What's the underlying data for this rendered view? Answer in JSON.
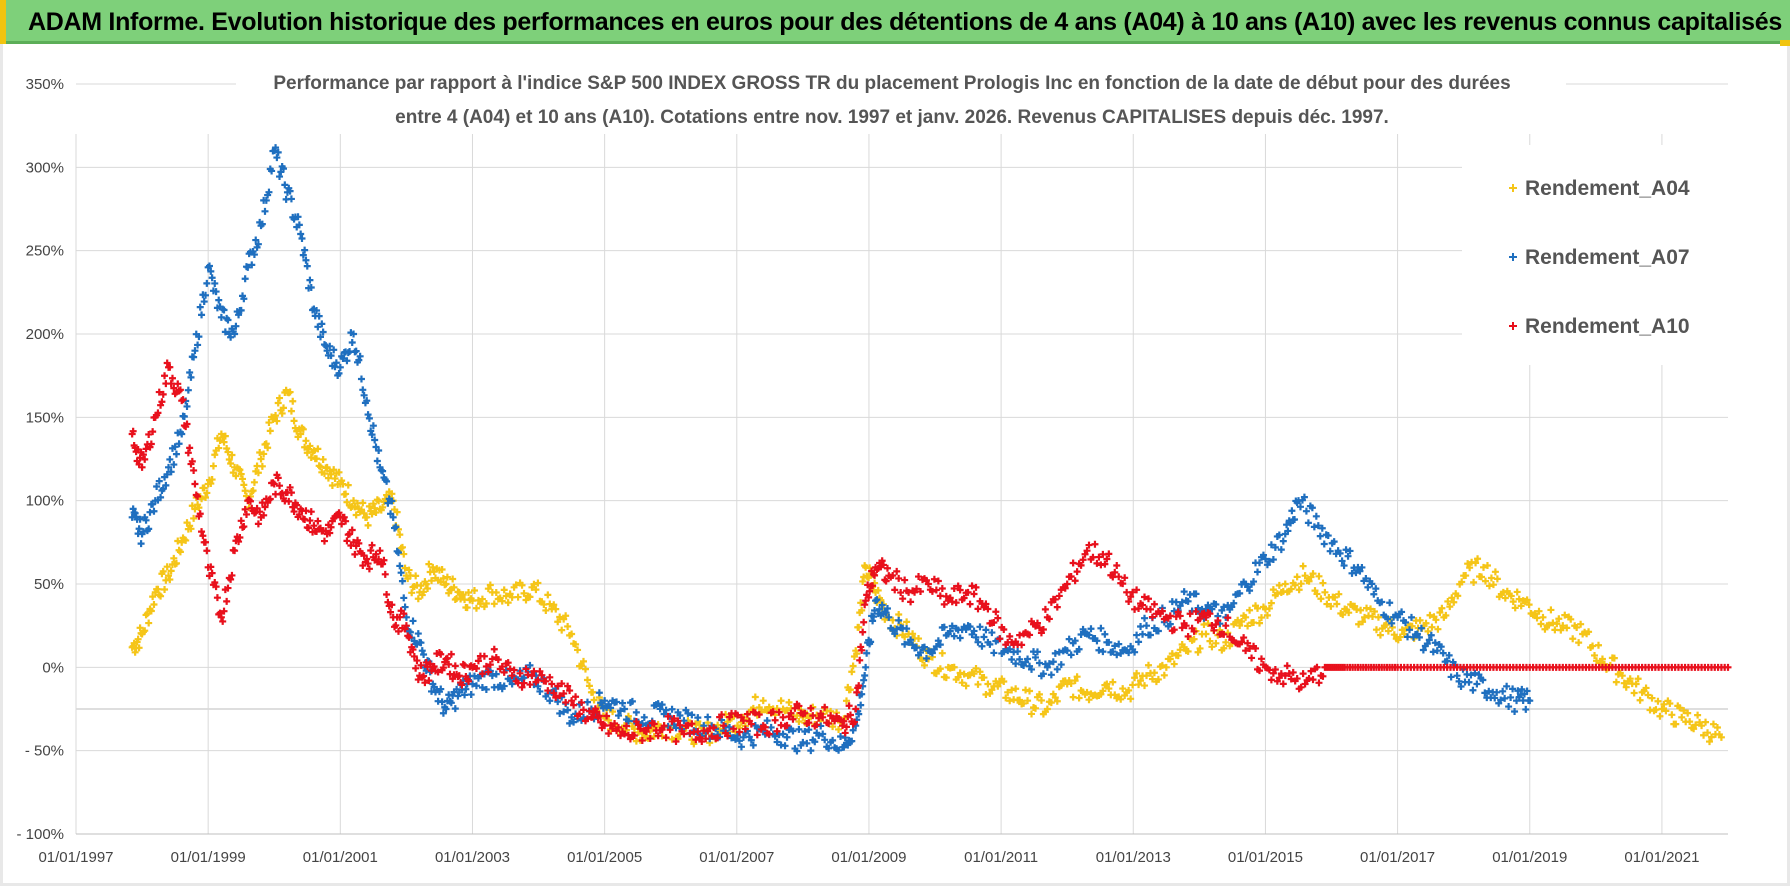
{
  "banner": {
    "title": "ADAM Informe. Evolution historique des performances en euros pour des détentions de 4 ans (A04) à 10 ans (A10) avec les revenus connus capitalisés"
  },
  "colors": {
    "banner_bg": "#7ed07a",
    "A04": "#f5c518",
    "A07": "#1f6fbf",
    "A10": "#e8101c",
    "grid": "#d9d9d9"
  },
  "chart_data": {
    "type": "scatter",
    "title_lines": [
      "Performance par rapport à l'indice S&P 500 INDEX GROSS TR  du placement Prologis Inc en fonction de la date de début pour des durées",
      "entre 4 (A04) et 10 ans (A10). Cotations entre nov. 1997 et janv. 2026. Revenus CAPITALISES depuis déc. 1997."
    ],
    "xlabel": "",
    "ylabel": "",
    "x_range": [
      1997.0,
      2022.0
    ],
    "ylim": [
      -100,
      350
    ],
    "y_ticks": [
      -100,
      -50,
      0,
      50,
      100,
      150,
      200,
      250,
      300,
      350
    ],
    "y_tick_labels": [
      "- 100%",
      "- 50%",
      "0%",
      "50%",
      "100%",
      "150%",
      "200%",
      "250%",
      "300%",
      "350%"
    ],
    "x_ticks": [
      1997,
      1999,
      2001,
      2003,
      2005,
      2007,
      2009,
      2011,
      2013,
      2015,
      2017,
      2019,
      2021
    ],
    "x_tick_labels": [
      "01/01/1997",
      "01/01/1999",
      "01/01/2001",
      "01/01/2003",
      "01/01/2005",
      "01/01/2007",
      "01/01/2009",
      "01/01/2011",
      "01/01/2013",
      "01/01/2015",
      "01/01/2017",
      "01/01/2019",
      "01/01/2021"
    ],
    "legend_position": "top-right",
    "grid": true,
    "series": [
      {
        "name": "Rendement_A04",
        "color": "#f5c518",
        "x": [
          1997.85,
          1998.0,
          1998.2,
          1998.4,
          1998.6,
          1998.8,
          1999.0,
          1999.2,
          1999.4,
          1999.6,
          1999.8,
          2000.0,
          2000.2,
          2000.4,
          2000.6,
          2000.8,
          2001.0,
          2001.2,
          2001.4,
          2001.6,
          2001.8,
          2002.0,
          2002.2,
          2002.4,
          2002.6,
          2002.8,
          2003.0,
          2003.3,
          2003.6,
          2003.9,
          2004.2,
          2004.5,
          2004.8,
          2005.0,
          2005.3,
          2005.6,
          2005.9,
          2006.2,
          2006.5,
          2006.8,
          2007.1,
          2007.4,
          2007.7,
          2008.0,
          2008.3,
          2008.6,
          2008.8,
          2008.95,
          2009.1,
          2009.3,
          2009.6,
          2009.9,
          2010.2,
          2010.5,
          2010.8,
          2011.1,
          2011.4,
          2011.7,
          2012.0,
          2012.3,
          2012.6,
          2012.9,
          2013.2,
          2013.5,
          2013.8,
          2014.1,
          2014.4,
          2014.7,
          2015.0,
          2015.3,
          2015.6,
          2015.9,
          2016.2,
          2016.5,
          2016.8,
          2017.1,
          2017.4,
          2017.7,
          2018.0,
          2018.3,
          2018.6,
          2018.9,
          2019.2,
          2019.5,
          2019.8,
          2020.1,
          2020.4,
          2020.7,
          2021.0,
          2021.3,
          2021.6,
          2021.9
        ],
        "values": [
          12,
          20,
          45,
          55,
          75,
          95,
          110,
          140,
          120,
          100,
          125,
          150,
          165,
          140,
          130,
          120,
          110,
          100,
          90,
          95,
          100,
          55,
          45,
          60,
          50,
          45,
          40,
          45,
          42,
          48,
          35,
          20,
          -15,
          -30,
          -35,
          -40,
          -35,
          -38,
          -40,
          -35,
          -30,
          -20,
          -25,
          -30,
          -28,
          -32,
          10,
          60,
          45,
          30,
          20,
          5,
          0,
          -5,
          -10,
          -15,
          -20,
          -25,
          -10,
          -15,
          -10,
          -15,
          -5,
          0,
          10,
          20,
          15,
          30,
          35,
          50,
          55,
          45,
          35,
          30,
          25,
          20,
          25,
          30,
          55,
          60,
          45,
          40,
          30,
          25,
          20,
          5,
          -5,
          -15,
          -25,
          -30,
          -35,
          -42
        ]
      },
      {
        "name": "Rendement_A07",
        "color": "#1f6fbf",
        "x": [
          1997.85,
          1998.0,
          1998.2,
          1998.4,
          1998.6,
          1998.8,
          1999.0,
          1999.2,
          1999.4,
          1999.6,
          1999.8,
          2000.0,
          2000.2,
          2000.4,
          2000.6,
          2000.8,
          2001.0,
          2001.2,
          2001.4,
          2001.6,
          2001.8,
          2002.0,
          2002.2,
          2002.4,
          2002.6,
          2002.8,
          2003.0,
          2003.3,
          2003.6,
          2003.9,
          2004.2,
          2004.5,
          2004.8,
          2005.0,
          2005.3,
          2005.6,
          2005.9,
          2006.2,
          2006.5,
          2006.8,
          2007.1,
          2007.4,
          2007.7,
          2008.0,
          2008.3,
          2008.6,
          2008.8,
          2008.95,
          2009.1,
          2009.3,
          2009.6,
          2009.9,
          2010.2,
          2010.5,
          2010.8,
          2011.1,
          2011.4,
          2011.7,
          2012.0,
          2012.3,
          2012.6,
          2012.9,
          2013.2,
          2013.5,
          2013.8,
          2014.1,
          2014.4,
          2014.7,
          2015.0,
          2015.3,
          2015.5,
          2015.8,
          2016.1,
          2016.4,
          2016.7,
          2017.0,
          2017.3,
          2017.6,
          2017.9,
          2018.2,
          2018.5,
          2018.8,
          2019.0
        ],
        "values": [
          90,
          80,
          100,
          120,
          140,
          190,
          240,
          210,
          200,
          240,
          265,
          310,
          285,
          260,
          215,
          190,
          180,
          200,
          160,
          120,
          90,
          30,
          15,
          -10,
          -25,
          -15,
          -10,
          -5,
          -10,
          -5,
          -15,
          -30,
          -25,
          -20,
          -25,
          -30,
          -28,
          -32,
          -35,
          -38,
          -42,
          -38,
          -40,
          -45,
          -40,
          -48,
          -35,
          0,
          40,
          30,
          15,
          10,
          20,
          25,
          15,
          10,
          5,
          0,
          10,
          20,
          15,
          10,
          25,
          30,
          40,
          35,
          30,
          50,
          65,
          80,
          100,
          85,
          70,
          60,
          40,
          30,
          20,
          10,
          -5,
          -10,
          -15,
          -20,
          -20
        ]
      },
      {
        "name": "Rendement_A10",
        "color": "#e8101c",
        "x": [
          1997.85,
          1998.0,
          1998.2,
          1998.4,
          1998.6,
          1998.8,
          1999.0,
          1999.2,
          1999.4,
          1999.6,
          1999.8,
          2000.0,
          2000.2,
          2000.4,
          2000.6,
          2000.8,
          2001.0,
          2001.2,
          2001.4,
          2001.6,
          2001.8,
          2002.0,
          2002.2,
          2002.4,
          2002.6,
          2002.8,
          2003.0,
          2003.3,
          2003.6,
          2003.9,
          2004.2,
          2004.5,
          2004.8,
          2005.0,
          2005.3,
          2005.6,
          2005.9,
          2006.2,
          2006.5,
          2006.8,
          2007.1,
          2007.4,
          2007.7,
          2008.0,
          2008.3,
          2008.6,
          2008.8,
          2008.95,
          2009.1,
          2009.3,
          2009.6,
          2009.9,
          2010.2,
          2010.5,
          2010.8,
          2011.1,
          2011.4,
          2011.7,
          2012.0,
          2012.3,
          2012.6,
          2012.9,
          2013.2,
          2013.5,
          2013.8,
          2014.1,
          2014.4,
          2014.7,
          2015.0,
          2015.3,
          2015.6,
          2015.9,
          2016.2,
          2016.6,
          2017.0,
          2017.5,
          2018.0,
          2018.5,
          2019.0,
          2019.5,
          2020.0,
          2020.5,
          2021.0,
          2021.5,
          2022.0
        ],
        "values": [
          140,
          120,
          150,
          180,
          160,
          110,
          60,
          30,
          70,
          100,
          90,
          110,
          105,
          95,
          85,
          80,
          90,
          75,
          65,
          70,
          30,
          25,
          -5,
          0,
          5,
          -5,
          0,
          5,
          -5,
          -5,
          -10,
          -20,
          -30,
          -35,
          -40,
          -38,
          -35,
          -40,
          -38,
          -35,
          -32,
          -35,
          -30,
          -28,
          -30,
          -35,
          -25,
          40,
          60,
          55,
          45,
          50,
          40,
          45,
          35,
          15,
          20,
          30,
          50,
          70,
          65,
          45,
          35,
          30,
          25,
          30,
          25,
          10,
          0,
          -5,
          -10,
          0,
          0,
          0,
          0,
          0,
          0,
          0,
          0,
          0,
          0,
          0,
          0,
          0,
          0
        ]
      }
    ]
  }
}
